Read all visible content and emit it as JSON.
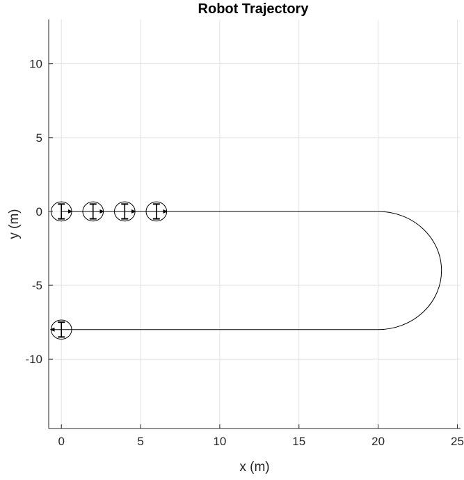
{
  "chart_data": {
    "type": "line",
    "title": "Robot Trajectory",
    "xlabel": "x (m)",
    "ylabel": "y (m)",
    "xlim": [
      -0.8,
      25.2
    ],
    "ylim": [
      -14.7,
      13.0
    ],
    "xticks": [
      0,
      5,
      10,
      15,
      20,
      25
    ],
    "yticks": [
      10,
      5,
      0,
      -5,
      -10
    ],
    "xtick_labels": [
      "0",
      "5",
      "10",
      "15",
      "20",
      "25"
    ],
    "ytick_labels": [
      "10",
      "5",
      "0",
      "-5",
      "-10"
    ],
    "grid": true,
    "series": [
      {
        "type": "path",
        "color": "#000000",
        "segments": [
          {
            "kind": "line",
            "from": [
              0,
              0
            ],
            "to": [
              20,
              0
            ]
          },
          {
            "kind": "arc",
            "center": [
              20,
              -4
            ],
            "radius": 4,
            "start_deg": 90,
            "end_deg": -90
          },
          {
            "kind": "line",
            "from": [
              20,
              -8
            ],
            "to": [
              0,
              -8
            ]
          }
        ]
      }
    ],
    "robot_poses": [
      {
        "x": 0,
        "y": 0,
        "heading_deg": 0
      },
      {
        "x": 2,
        "y": 0,
        "heading_deg": 0
      },
      {
        "x": 4,
        "y": 0,
        "heading_deg": 0
      },
      {
        "x": 6,
        "y": 0,
        "heading_deg": 0
      },
      {
        "x": 0,
        "y": -8,
        "heading_deg": 180
      }
    ],
    "robot_radius": 0.65,
    "robot_wheel_halfwidth": 0.5
  }
}
